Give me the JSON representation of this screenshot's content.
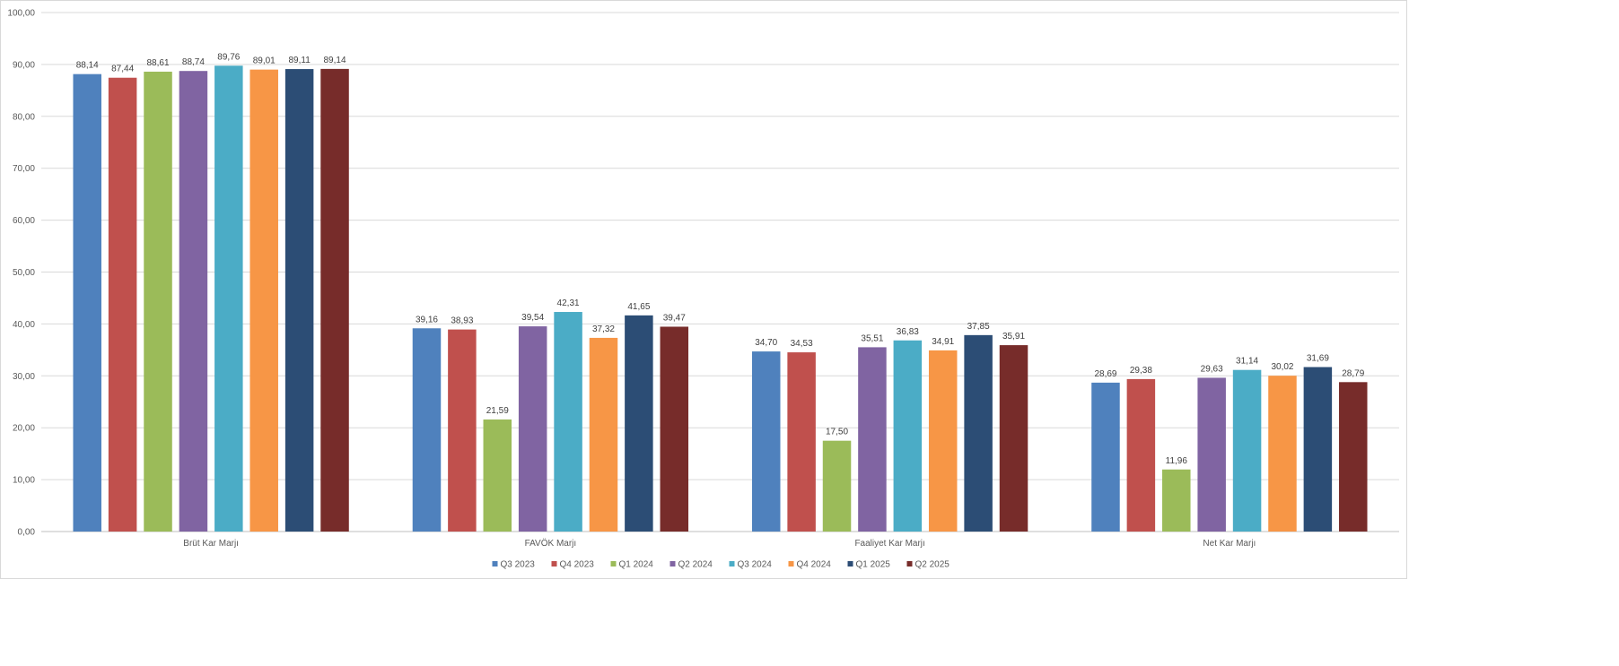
{
  "chart_data": {
    "type": "bar",
    "title": "",
    "xlabel": "",
    "ylabel": "",
    "ylim": [
      0,
      100
    ],
    "ytick_step": 10,
    "ytick_labels": [
      "0,00",
      "10,00",
      "20,00",
      "30,00",
      "40,00",
      "50,00",
      "60,00",
      "70,00",
      "80,00",
      "90,00",
      "100,00"
    ],
    "grid": true,
    "legend_position": "bottom",
    "categories": [
      "Brüt Kar Marjı",
      "FAVÖK Marjı",
      "Faaliyet Kar Marjı",
      "Net Kar Marjı"
    ],
    "series": [
      {
        "name": "Q3 2023",
        "color": "#4f81bd",
        "values": [
          88.14,
          39.16,
          34.7,
          28.69
        ],
        "labels": [
          "88,14",
          "39,16",
          "34,70",
          "28,69"
        ]
      },
      {
        "name": "Q4 2023",
        "color": "#c0504d",
        "values": [
          87.44,
          38.93,
          34.53,
          29.38
        ],
        "labels": [
          "87,44",
          "38,93",
          "34,53",
          "29,38"
        ]
      },
      {
        "name": "Q1 2024",
        "color": "#9bbb59",
        "values": [
          88.61,
          21.59,
          17.5,
          11.96
        ],
        "labels": [
          "88,61",
          "21,59",
          "17,50",
          "11,96"
        ]
      },
      {
        "name": "Q2 2024",
        "color": "#8064a2",
        "values": [
          88.74,
          39.54,
          35.51,
          29.63
        ],
        "labels": [
          "88,74",
          "39,54",
          "35,51",
          "29,63"
        ]
      },
      {
        "name": "Q3 2024",
        "color": "#4bacc6",
        "values": [
          89.76,
          42.31,
          36.83,
          31.14
        ],
        "labels": [
          "89,76",
          "42,31",
          "36,83",
          "31,14"
        ]
      },
      {
        "name": "Q4 2024",
        "color": "#f79646",
        "values": [
          89.01,
          37.32,
          34.91,
          30.02
        ],
        "labels": [
          "89,01",
          "37,32",
          "34,91",
          "30,02"
        ]
      },
      {
        "name": "Q1 2025",
        "color": "#2c4d75",
        "values": [
          89.11,
          41.65,
          37.85,
          31.69
        ],
        "labels": [
          "89,11",
          "41,65",
          "37,85",
          "31,69"
        ]
      },
      {
        "name": "Q2 2025",
        "color": "#772c2a",
        "values": [
          89.14,
          39.47,
          35.91,
          28.79
        ],
        "labels": [
          "89,14",
          "39,47",
          "35,91",
          "28,79"
        ]
      }
    ]
  }
}
